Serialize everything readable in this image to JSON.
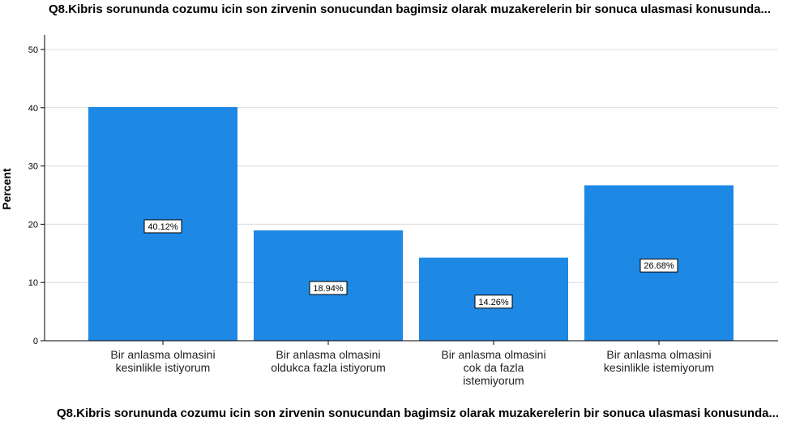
{
  "chart_data": {
    "type": "bar",
    "title": "Q8.Kibris sorununda cozumu icin son zirvenin sonucundan bagimsiz olarak muzakerelerin bir sonuca ulasmasi konusunda...",
    "xlabel": "Q8.Kibris sorununda cozumu icin son zirvenin sonucundan bagimsiz olarak muzakerelerin bir sonuca ulasmasi konusunda...",
    "ylabel": "Percent",
    "ylim": [
      0,
      50
    ],
    "yticks": [
      0,
      10,
      20,
      30,
      40,
      50
    ],
    "categories": [
      "Bir anlasma olmasini kesinlikle istiyorum",
      "Bir anlasma olmasini oldukca fazla istiyorum",
      "Bir anlasma olmasini cok da fazla istemiyorum",
      "Bir anlasma olmasini kesinlikle istemiyorum"
    ],
    "category_lines": [
      [
        "Bir anlasma olmasini",
        "kesinlikle istiyorum"
      ],
      [
        "Bir anlasma olmasini",
        "oldukca fazla istiyorum"
      ],
      [
        "Bir anlasma olmasini",
        "cok da fazla",
        "istemiyorum"
      ],
      [
        "Bir anlasma olmasini",
        "kesinlikle istemiyorum"
      ]
    ],
    "values": [
      40.12,
      18.94,
      14.26,
      26.68
    ],
    "data_labels": [
      "40.12%",
      "18.94%",
      "14.26%",
      "26.68%"
    ],
    "bar_color": "#1e88e5",
    "grid": true,
    "grid_color": "#d9d9d9",
    "legend": "none"
  }
}
